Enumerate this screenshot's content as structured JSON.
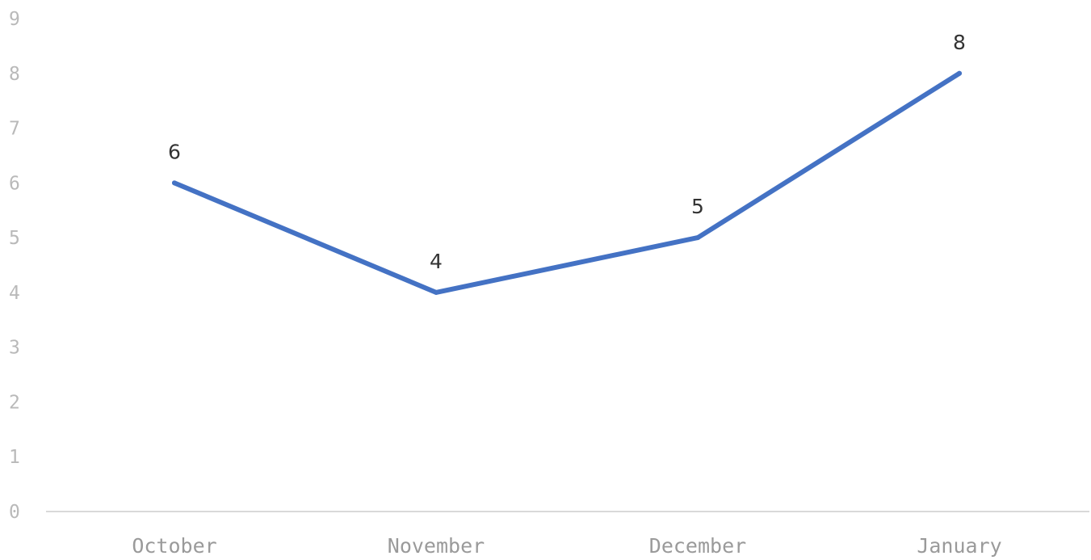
{
  "chart_data": {
    "type": "line",
    "title": "",
    "xlabel": "",
    "ylabel": "",
    "categories": [
      "October",
      "November",
      "December",
      "January"
    ],
    "series": [
      {
        "values": [
          6,
          4,
          5,
          8
        ]
      }
    ],
    "ylim": [
      0,
      9
    ],
    "yticks": [
      "0",
      "1",
      "2",
      "3",
      "4",
      "5",
      "6",
      "7",
      "8",
      "9"
    ],
    "data_labels": [
      "6",
      "4",
      "5",
      "8"
    ],
    "grid": false,
    "line_color": "#4472c4",
    "axis_color": "#d9d9d9"
  }
}
